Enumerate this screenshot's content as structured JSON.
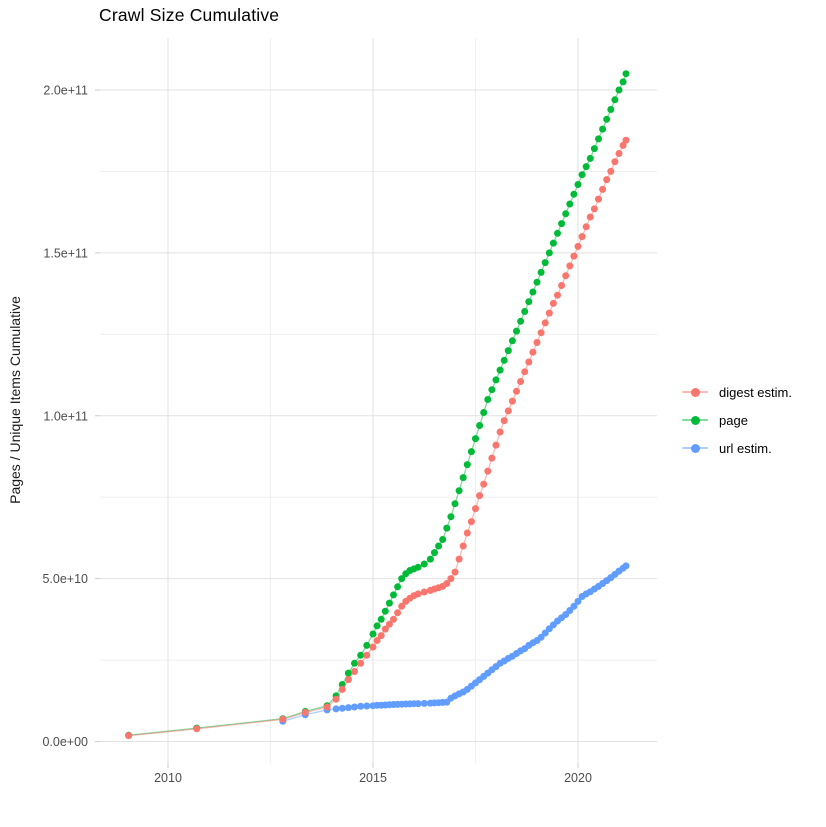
{
  "title": "Crawl Size Cumulative",
  "y_axis_title": "Pages / Unique Items Cumulative",
  "legend": {
    "items": [
      {
        "label": "digest estim.",
        "color": "#F8766D"
      },
      {
        "label": "page",
        "color": "#00BA38"
      },
      {
        "label": "url estim.",
        "color": "#619CFF"
      }
    ]
  },
  "colors": {
    "digest": "#F8766D",
    "page": "#00BA38",
    "url": "#619CFF",
    "grid_major": "#E2E2E2",
    "grid_minor": "#EFEFEF",
    "tick_mark": "#CCCCCC",
    "tick_label": "#4D4D4D"
  },
  "chart_data": {
    "type": "scatter",
    "title": "Crawl Size Cumulative",
    "xlabel": "",
    "ylabel": "Pages / Unique Items Cumulative",
    "value_unit": "pages / unique items; stored values are in billions (multiply by 1e9)",
    "x_unit": "calendar year (decimal)",
    "xlim": [
      2008.3,
      2021.9
    ],
    "ylim_e9": [
      0,
      216
    ],
    "grid": true,
    "legend_position": "right",
    "x_ticks": [
      {
        "label": "2010",
        "value": 2010
      },
      {
        "label": "2015",
        "value": 2015
      },
      {
        "label": "2020",
        "value": 2020
      }
    ],
    "x_minor": [
      2012.5,
      2017.5
    ],
    "y_ticks": [
      {
        "label": "0.0e+00",
        "value_e9": 0
      },
      {
        "label": "5.0e+10",
        "value_e9": 50
      },
      {
        "label": "1.0e+11",
        "value_e9": 100
      },
      {
        "label": "1.5e+11",
        "value_e9": 150
      },
      {
        "label": "2.0e+11",
        "value_e9": 200
      }
    ],
    "y_minor_e9": [
      25,
      75,
      125,
      175
    ],
    "draw_order": [
      1,
      2,
      0
    ],
    "series": [
      {
        "name": "digest estim.",
        "id": "digest-estim",
        "color": "#F8766D",
        "points_year_value_e9": [
          [
            2009.04,
            1.8
          ],
          [
            2010.7,
            3.9
          ],
          [
            2012.8,
            6.8
          ],
          [
            2013.35,
            8.9
          ],
          [
            2013.88,
            10.6
          ],
          [
            2014.1,
            13
          ],
          [
            2014.25,
            16
          ],
          [
            2014.4,
            19
          ],
          [
            2014.55,
            21.5
          ],
          [
            2014.7,
            24
          ],
          [
            2014.85,
            26.5
          ],
          [
            2015.0,
            29
          ],
          [
            2015.1,
            31
          ],
          [
            2015.2,
            32.5
          ],
          [
            2015.3,
            34.5
          ],
          [
            2015.4,
            36
          ],
          [
            2015.5,
            37.5
          ],
          [
            2015.6,
            39.5
          ],
          [
            2015.7,
            41.5
          ],
          [
            2015.8,
            43
          ],
          [
            2015.9,
            44
          ],
          [
            2016.0,
            44.8
          ],
          [
            2016.1,
            45.3
          ],
          [
            2016.25,
            45.9
          ],
          [
            2016.4,
            46.4
          ],
          [
            2016.5,
            46.8
          ],
          [
            2016.6,
            47.2
          ],
          [
            2016.7,
            47.6
          ],
          [
            2016.8,
            48.5
          ],
          [
            2016.9,
            50
          ],
          [
            2017.0,
            52
          ],
          [
            2017.1,
            56
          ],
          [
            2017.2,
            60
          ],
          [
            2017.3,
            64
          ],
          [
            2017.4,
            67.5
          ],
          [
            2017.5,
            71.5
          ],
          [
            2017.6,
            75.5
          ],
          [
            2017.7,
            79
          ],
          [
            2017.8,
            83
          ],
          [
            2017.9,
            87
          ],
          [
            2018.0,
            91
          ],
          [
            2018.1,
            95
          ],
          [
            2018.2,
            98.5
          ],
          [
            2018.3,
            101.5
          ],
          [
            2018.4,
            104.5
          ],
          [
            2018.5,
            107.5
          ],
          [
            2018.6,
            110.5
          ],
          [
            2018.7,
            113.5
          ],
          [
            2018.8,
            116.5
          ],
          [
            2018.9,
            119.5
          ],
          [
            2019.0,
            122.5
          ],
          [
            2019.1,
            125.5
          ],
          [
            2019.2,
            128.5
          ],
          [
            2019.3,
            131.5
          ],
          [
            2019.4,
            134.5
          ],
          [
            2019.5,
            137
          ],
          [
            2019.6,
            140
          ],
          [
            2019.7,
            143
          ],
          [
            2019.8,
            146
          ],
          [
            2019.9,
            149
          ],
          [
            2020.0,
            152
          ],
          [
            2020.1,
            155
          ],
          [
            2020.2,
            158
          ],
          [
            2020.3,
            161
          ],
          [
            2020.4,
            163.5
          ],
          [
            2020.5,
            166.5
          ],
          [
            2020.6,
            169.5
          ],
          [
            2020.7,
            172.5
          ],
          [
            2020.8,
            175
          ],
          [
            2020.9,
            178
          ],
          [
            2021.0,
            180.5
          ],
          [
            2021.1,
            183
          ],
          [
            2021.17,
            184.6
          ]
        ]
      },
      {
        "name": "page",
        "id": "page",
        "color": "#00BA38",
        "points_year_value_e9": [
          [
            2009.04,
            1.9
          ],
          [
            2010.7,
            4.1
          ],
          [
            2012.8,
            7.0
          ],
          [
            2013.35,
            9.2
          ],
          [
            2013.88,
            11.0
          ],
          [
            2014.1,
            14
          ],
          [
            2014.25,
            17.5
          ],
          [
            2014.4,
            21
          ],
          [
            2014.55,
            24
          ],
          [
            2014.7,
            26.5
          ],
          [
            2014.85,
            29.5
          ],
          [
            2015.0,
            33
          ],
          [
            2015.1,
            35.5
          ],
          [
            2015.2,
            37.5
          ],
          [
            2015.3,
            40
          ],
          [
            2015.4,
            42.5
          ],
          [
            2015.5,
            45
          ],
          [
            2015.6,
            47.5
          ],
          [
            2015.7,
            50
          ],
          [
            2015.8,
            51.5
          ],
          [
            2015.9,
            52.5
          ],
          [
            2016.0,
            53
          ],
          [
            2016.1,
            53.5
          ],
          [
            2016.25,
            54.5
          ],
          [
            2016.4,
            56
          ],
          [
            2016.5,
            58
          ],
          [
            2016.6,
            60
          ],
          [
            2016.7,
            62
          ],
          [
            2016.8,
            65.5
          ],
          [
            2016.9,
            69
          ],
          [
            2017.0,
            73
          ],
          [
            2017.1,
            77
          ],
          [
            2017.2,
            81
          ],
          [
            2017.3,
            85
          ],
          [
            2017.4,
            89
          ],
          [
            2017.5,
            93
          ],
          [
            2017.6,
            97
          ],
          [
            2017.7,
            101
          ],
          [
            2017.8,
            105
          ],
          [
            2017.9,
            108
          ],
          [
            2018.0,
            111
          ],
          [
            2018.1,
            114
          ],
          [
            2018.2,
            117
          ],
          [
            2018.3,
            120
          ],
          [
            2018.4,
            123
          ],
          [
            2018.5,
            126
          ],
          [
            2018.6,
            129
          ],
          [
            2018.7,
            132
          ],
          [
            2018.8,
            135
          ],
          [
            2018.9,
            138
          ],
          [
            2019.0,
            141
          ],
          [
            2019.1,
            144
          ],
          [
            2019.2,
            147
          ],
          [
            2019.3,
            150
          ],
          [
            2019.4,
            153
          ],
          [
            2019.5,
            156
          ],
          [
            2019.6,
            159
          ],
          [
            2019.7,
            162
          ],
          [
            2019.8,
            165
          ],
          [
            2019.9,
            168
          ],
          [
            2020.0,
            171
          ],
          [
            2020.1,
            174
          ],
          [
            2020.2,
            176.5
          ],
          [
            2020.3,
            179
          ],
          [
            2020.4,
            182
          ],
          [
            2020.5,
            185
          ],
          [
            2020.6,
            188
          ],
          [
            2020.7,
            191
          ],
          [
            2020.8,
            194
          ],
          [
            2020.9,
            197
          ],
          [
            2021.0,
            200
          ],
          [
            2021.1,
            202.5
          ],
          [
            2021.17,
            205
          ]
        ]
      },
      {
        "name": "url estim.",
        "id": "url-estim",
        "color": "#619CFF",
        "points_year_value_e9": [
          [
            2012.8,
            6.2
          ],
          [
            2013.35,
            8.2
          ],
          [
            2013.88,
            9.7
          ],
          [
            2014.1,
            10
          ],
          [
            2014.25,
            10.2
          ],
          [
            2014.4,
            10.4
          ],
          [
            2014.55,
            10.6
          ],
          [
            2014.7,
            10.8
          ],
          [
            2014.85,
            10.9
          ],
          [
            2015.0,
            11
          ],
          [
            2015.1,
            11.1
          ],
          [
            2015.2,
            11.15
          ],
          [
            2015.3,
            11.2
          ],
          [
            2015.4,
            11.3
          ],
          [
            2015.5,
            11.35
          ],
          [
            2015.6,
            11.4
          ],
          [
            2015.7,
            11.45
          ],
          [
            2015.8,
            11.5
          ],
          [
            2015.9,
            11.55
          ],
          [
            2016.0,
            11.6
          ],
          [
            2016.1,
            11.65
          ],
          [
            2016.25,
            11.7
          ],
          [
            2016.4,
            11.8
          ],
          [
            2016.5,
            11.85
          ],
          [
            2016.6,
            11.9
          ],
          [
            2016.7,
            12
          ],
          [
            2016.8,
            12.1
          ],
          [
            2016.9,
            13.3
          ],
          [
            2017.0,
            14
          ],
          [
            2017.1,
            14.6
          ],
          [
            2017.2,
            15.2
          ],
          [
            2017.3,
            16
          ],
          [
            2017.4,
            17
          ],
          [
            2017.5,
            18
          ],
          [
            2017.6,
            19
          ],
          [
            2017.7,
            20
          ],
          [
            2017.8,
            21
          ],
          [
            2017.9,
            22
          ],
          [
            2018.0,
            23
          ],
          [
            2018.1,
            24
          ],
          [
            2018.2,
            24.7
          ],
          [
            2018.3,
            25.5
          ],
          [
            2018.4,
            26.2
          ],
          [
            2018.5,
            27
          ],
          [
            2018.6,
            27.8
          ],
          [
            2018.7,
            28.5
          ],
          [
            2018.8,
            29.5
          ],
          [
            2018.9,
            30.3
          ],
          [
            2019.0,
            31
          ],
          [
            2019.1,
            32
          ],
          [
            2019.2,
            33.3
          ],
          [
            2019.3,
            34.6
          ],
          [
            2019.4,
            35.8
          ],
          [
            2019.5,
            37
          ],
          [
            2019.6,
            38
          ],
          [
            2019.7,
            39
          ],
          [
            2019.8,
            40.2
          ],
          [
            2019.9,
            41.5
          ],
          [
            2020.0,
            43
          ],
          [
            2020.1,
            44.5
          ],
          [
            2020.2,
            45.3
          ],
          [
            2020.3,
            46
          ],
          [
            2020.4,
            46.8
          ],
          [
            2020.5,
            47.6
          ],
          [
            2020.6,
            48.5
          ],
          [
            2020.7,
            49.4
          ],
          [
            2020.8,
            50.3
          ],
          [
            2020.9,
            51.3
          ],
          [
            2021.0,
            52.3
          ],
          [
            2021.1,
            53.2
          ],
          [
            2021.17,
            53.9
          ]
        ]
      }
    ]
  }
}
